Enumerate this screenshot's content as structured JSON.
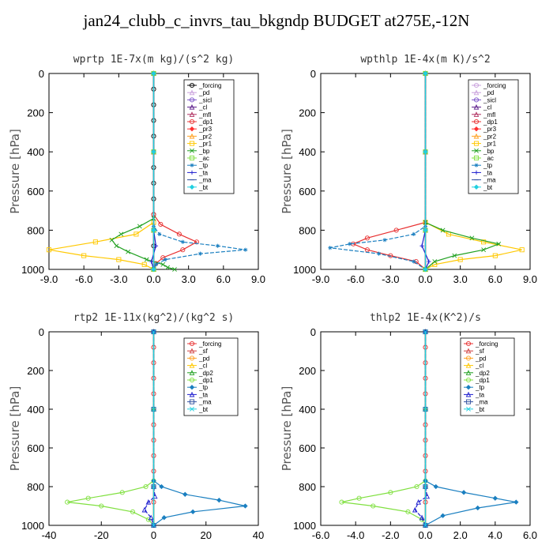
{
  "title": "jan24_clubb_c_invrs_tau_bkgndp  BUDGET at275E,-12N",
  "chart_data": [
    {
      "type": "line",
      "title": "wprtp  1E-7x(m kg)/(s^2 kg)",
      "ylabel": "Pressure [hPa]",
      "xlim": [
        -9.0,
        9.0
      ],
      "ylim": [
        1000,
        0
      ],
      "xticks": [
        "-9.0",
        "-6.0",
        "-3.0",
        "0.0",
        "3.0",
        "6.0",
        "9.0"
      ],
      "xtick_values": [
        -9,
        -6,
        -3,
        0,
        3,
        6,
        9
      ],
      "yticks": [
        "0",
        "200",
        "400",
        "600",
        "800",
        "1000"
      ],
      "ytick_values": [
        0,
        200,
        400,
        600,
        800,
        1000
      ],
      "series": [
        {
          "name": "_forcing",
          "color": "#000000",
          "x": [
            0,
            0,
            0,
            0,
            0,
            0,
            0,
            0,
            0,
            0,
            0,
            0,
            0
          ],
          "y": [
            0,
            80,
            160,
            240,
            320,
            400,
            480,
            560,
            640,
            720,
            800,
            880,
            1000
          ]
        },
        {
          "name": "_pd",
          "color": "#c9a0dc",
          "x": [
            0,
            0,
            0,
            0
          ],
          "y": [
            0,
            400,
            800,
            1000
          ]
        },
        {
          "name": "_sicl",
          "color": "#7b52c9",
          "x": [
            0,
            0,
            0,
            0
          ],
          "y": [
            0,
            400,
            800,
            1000
          ]
        },
        {
          "name": "_cl",
          "color": "#5a1a8a",
          "x": [
            0,
            0,
            0,
            0
          ],
          "y": [
            0,
            400,
            800,
            1000
          ]
        },
        {
          "name": "_mfl",
          "color": "#b03060",
          "x": [
            0,
            0,
            0,
            0
          ],
          "y": [
            0,
            400,
            800,
            1000
          ]
        },
        {
          "name": "_dp1",
          "color": "#e83030",
          "x": [
            0,
            0,
            0.6,
            2.2,
            3.7,
            2.5,
            0.8,
            0.2,
            0
          ],
          "y": [
            0,
            720,
            770,
            820,
            860,
            900,
            940,
            970,
            1000
          ]
        },
        {
          "name": "_pr3",
          "color": "#ff3030",
          "x": [
            0,
            0,
            0,
            0
          ],
          "y": [
            0,
            400,
            800,
            1000
          ]
        },
        {
          "name": "_pr2",
          "color": "#ffa020",
          "x": [
            0,
            0,
            0,
            0
          ],
          "y": [
            0,
            400,
            800,
            1000
          ]
        },
        {
          "name": "_pr1",
          "color": "#ffc800",
          "x": [
            0,
            0,
            -1.5,
            -5,
            -9,
            -6,
            -3,
            -0.8,
            0
          ],
          "y": [
            0,
            760,
            820,
            860,
            900,
            930,
            950,
            975,
            1000
          ]
        },
        {
          "name": "_bp",
          "color": "#20a020",
          "x": [
            0,
            0,
            -1.2,
            -2.8,
            -3.6,
            -3.2,
            -2.2,
            -0.6,
            0.8,
            1.2,
            1.8
          ],
          "y": [
            0,
            740,
            780,
            820,
            850,
            880,
            910,
            950,
            975,
            990,
            1000
          ]
        },
        {
          "name": "_ac",
          "color": "#80e040",
          "x": [
            0,
            0,
            0,
            0
          ],
          "y": [
            0,
            400,
            800,
            1000
          ]
        },
        {
          "name": "_tp",
          "color": "#1a7fc0",
          "x": [
            0,
            0,
            0.5,
            2.5,
            5.5,
            7.9,
            4,
            1,
            0.2,
            0
          ],
          "y": [
            0,
            780,
            820,
            860,
            880,
            900,
            920,
            950,
            975,
            1000
          ]
        },
        {
          "name": "_ta",
          "color": "#2020d0",
          "x": [
            0,
            0,
            0.2,
            -0.2,
            0
          ],
          "y": [
            0,
            800,
            880,
            960,
            1000
          ]
        },
        {
          "name": "_ma",
          "color": "#3050a0",
          "x": [
            0,
            0,
            0,
            0
          ],
          "y": [
            0,
            400,
            800,
            1000
          ]
        },
        {
          "name": "_bt",
          "color": "#20d0e0",
          "x": [
            0,
            0,
            0,
            0
          ],
          "y": [
            0,
            400,
            800,
            1000
          ]
        }
      ]
    },
    {
      "type": "line",
      "title": "wpthlp  1E-4x(m K)/s^2",
      "ylabel": "Pressure [hPa]",
      "xlim": [
        -9.0,
        9.0
      ],
      "ylim": [
        1000,
        0
      ],
      "xticks": [
        "-9.0",
        "-6.0",
        "-3.0",
        "0.0",
        "3.0",
        "6.0",
        "9.0"
      ],
      "xtick_values": [
        -9,
        -6,
        -3,
        0,
        3,
        6,
        9
      ],
      "yticks": [
        "0",
        "200",
        "400",
        "600",
        "800",
        "1000"
      ],
      "ytick_values": [
        0,
        200,
        400,
        600,
        800,
        1000
      ],
      "series": [
        {
          "name": "_forcing",
          "color": "#c9a0dc",
          "x": [
            0,
            0,
            0,
            0
          ],
          "y": [
            0,
            400,
            800,
            1000
          ]
        },
        {
          "name": "_pd",
          "color": "#c9a0dc",
          "x": [
            0,
            0,
            0,
            0
          ],
          "y": [
            0,
            400,
            800,
            1000
          ]
        },
        {
          "name": "_sicl",
          "color": "#7b52c9",
          "x": [
            0,
            0,
            0,
            0
          ],
          "y": [
            0,
            400,
            800,
            1000
          ]
        },
        {
          "name": "_cl",
          "color": "#5a1a8a",
          "x": [
            0,
            0,
            0,
            0
          ],
          "y": [
            0,
            400,
            800,
            1000
          ]
        },
        {
          "name": "_mfl",
          "color": "#b03060",
          "x": [
            0,
            0,
            0,
            0
          ],
          "y": [
            0,
            400,
            800,
            1000
          ]
        },
        {
          "name": "_dp1",
          "color": "#e83030",
          "x": [
            0,
            0,
            -2.5,
            -5,
            -6.2,
            -5,
            -3,
            -0.8,
            0
          ],
          "y": [
            0,
            760,
            800,
            840,
            870,
            900,
            930,
            960,
            1000
          ]
        },
        {
          "name": "_pr3",
          "color": "#ff3030",
          "x": [
            0,
            0,
            0,
            0
          ],
          "y": [
            0,
            400,
            800,
            1000
          ]
        },
        {
          "name": "_pr2",
          "color": "#ffa020",
          "x": [
            0,
            0,
            0,
            0
          ],
          "y": [
            0,
            400,
            800,
            1000
          ]
        },
        {
          "name": "_pr1",
          "color": "#ffc800",
          "x": [
            0,
            0,
            2,
            5,
            8.3,
            6,
            3,
            0.8,
            0
          ],
          "y": [
            0,
            760,
            820,
            860,
            900,
            930,
            950,
            975,
            1000
          ]
        },
        {
          "name": "_bp",
          "color": "#20a020",
          "x": [
            0,
            0,
            1.5,
            4,
            6.3,
            5,
            2.5,
            0.8,
            0
          ],
          "y": [
            0,
            760,
            800,
            840,
            870,
            900,
            930,
            960,
            1000
          ]
        },
        {
          "name": "_ac",
          "color": "#80e040",
          "x": [
            0,
            0,
            0,
            0
          ],
          "y": [
            0,
            400,
            800,
            1000
          ]
        },
        {
          "name": "_tp",
          "color": "#1a7fc0",
          "x": [
            0,
            0,
            -1,
            -3.5,
            -6.5,
            -8.2,
            -4,
            -1,
            0
          ],
          "y": [
            0,
            780,
            820,
            850,
            870,
            890,
            920,
            960,
            1000
          ]
        },
        {
          "name": "_ta",
          "color": "#2020d0",
          "x": [
            0,
            0,
            -0.3,
            0.3,
            0
          ],
          "y": [
            0,
            800,
            880,
            960,
            1000
          ]
        },
        {
          "name": "_ma",
          "color": "#3050a0",
          "x": [
            0,
            0,
            0,
            0
          ],
          "y": [
            0,
            400,
            800,
            1000
          ]
        },
        {
          "name": "_bt",
          "color": "#20d0e0",
          "x": [
            0,
            0,
            0,
            0
          ],
          "y": [
            0,
            400,
            800,
            1000
          ]
        }
      ]
    },
    {
      "type": "line",
      "title": "rtp2  1E-11x(kg^2)/(kg^2 s)",
      "ylabel": "Pressure [hPa]",
      "xlim": [
        -40,
        40
      ],
      "ylim": [
        1000,
        0
      ],
      "xticks": [
        "-40",
        "-20",
        "0",
        "20",
        "40"
      ],
      "xtick_values": [
        -40,
        -20,
        0,
        20,
        40
      ],
      "yticks": [
        "0",
        "200",
        "400",
        "600",
        "800",
        "1000"
      ],
      "ytick_values": [
        0,
        200,
        400,
        600,
        800,
        1000
      ],
      "series": [
        {
          "name": "_forcing",
          "color": "#e83030",
          "x": [
            0,
            0,
            0,
            0,
            0,
            0,
            0,
            0,
            0,
            0,
            0,
            0,
            0
          ],
          "y": [
            0,
            80,
            160,
            240,
            320,
            400,
            480,
            560,
            640,
            720,
            800,
            880,
            1000
          ]
        },
        {
          "name": "_sf",
          "color": "#d04040",
          "x": [
            0,
            0,
            0,
            0
          ],
          "y": [
            0,
            400,
            800,
            1000
          ]
        },
        {
          "name": "_pd",
          "color": "#ffa020",
          "x": [
            0,
            0,
            0,
            0
          ],
          "y": [
            0,
            400,
            800,
            1000
          ]
        },
        {
          "name": "_cl",
          "color": "#ffc800",
          "x": [
            0,
            0,
            0,
            0
          ],
          "y": [
            0,
            400,
            800,
            1000
          ]
        },
        {
          "name": "_dp2",
          "color": "#20a020",
          "x": [
            0,
            0,
            0,
            0
          ],
          "y": [
            0,
            400,
            800,
            1000
          ]
        },
        {
          "name": "_dp1",
          "color": "#80e040",
          "x": [
            0,
            0,
            -3,
            -12,
            -25,
            -33,
            -20,
            -8,
            -2,
            0
          ],
          "y": [
            0,
            770,
            800,
            830,
            860,
            880,
            900,
            930,
            970,
            1000
          ]
        },
        {
          "name": "_tp",
          "color": "#1a7fc0",
          "x": [
            0,
            0,
            3,
            12,
            25,
            35,
            15,
            4,
            0
          ],
          "y": [
            0,
            770,
            800,
            840,
            870,
            900,
            930,
            960,
            1000
          ]
        },
        {
          "name": "_ta",
          "color": "#2020d0",
          "x": [
            0,
            0,
            0.5,
            -2,
            -3.5,
            -1,
            0
          ],
          "y": [
            0,
            800,
            850,
            880,
            920,
            960,
            1000
          ]
        },
        {
          "name": "_ma",
          "color": "#3050a0",
          "x": [
            0,
            0,
            0,
            0
          ],
          "y": [
            0,
            400,
            800,
            1000
          ]
        },
        {
          "name": "_bt",
          "color": "#20d0e0",
          "x": [
            0,
            0,
            0,
            0
          ],
          "y": [
            0,
            400,
            800,
            1000
          ]
        }
      ]
    },
    {
      "type": "line",
      "title": "thlp2  1E-4x(K^2)/s",
      "ylabel": "Pressure [hPa]",
      "xlim": [
        -6.0,
        6.0
      ],
      "ylim": [
        1000,
        0
      ],
      "xticks": [
        "-6.0",
        "-4.0",
        "-2.0",
        "0.0",
        "2.0",
        "4.0",
        "6.0"
      ],
      "xtick_values": [
        -6,
        -4,
        -2,
        0,
        2,
        4,
        6
      ],
      "yticks": [
        "0",
        "200",
        "400",
        "600",
        "800",
        "1000"
      ],
      "ytick_values": [
        0,
        200,
        400,
        600,
        800,
        1000
      ],
      "series": [
        {
          "name": "_forcing",
          "color": "#e83030",
          "x": [
            0,
            0,
            0,
            0,
            0,
            0,
            0,
            0,
            0,
            0,
            0,
            0,
            0
          ],
          "y": [
            0,
            80,
            160,
            240,
            320,
            400,
            480,
            560,
            640,
            720,
            800,
            880,
            1000
          ]
        },
        {
          "name": "_sf",
          "color": "#d04040",
          "x": [
            0,
            0,
            0,
            0
          ],
          "y": [
            0,
            400,
            800,
            1000
          ]
        },
        {
          "name": "_pd",
          "color": "#ffa020",
          "x": [
            0,
            0,
            0,
            0
          ],
          "y": [
            0,
            400,
            800,
            1000
          ]
        },
        {
          "name": "_cl",
          "color": "#ffc800",
          "x": [
            0,
            0,
            0,
            0
          ],
          "y": [
            0,
            400,
            800,
            1000
          ]
        },
        {
          "name": "_dp2",
          "color": "#20a020",
          "x": [
            0,
            0,
            0,
            0
          ],
          "y": [
            0,
            400,
            800,
            1000
          ]
        },
        {
          "name": "_dp1",
          "color": "#80e040",
          "x": [
            0,
            0,
            -0.5,
            -2,
            -3.8,
            -4.8,
            -3,
            -1,
            -0.2,
            0
          ],
          "y": [
            0,
            770,
            800,
            830,
            860,
            880,
            900,
            930,
            970,
            1000
          ]
        },
        {
          "name": "_tp",
          "color": "#1a7fc0",
          "x": [
            0,
            0,
            0.6,
            2.2,
            4,
            5.2,
            3,
            1,
            0
          ],
          "y": [
            0,
            770,
            800,
            830,
            860,
            880,
            910,
            950,
            1000
          ]
        },
        {
          "name": "_ta",
          "color": "#2020d0",
          "x": [
            0,
            0,
            0.1,
            -0.4,
            -0.6,
            -0.2,
            0
          ],
          "y": [
            0,
            800,
            850,
            880,
            920,
            960,
            1000
          ]
        },
        {
          "name": "_ma",
          "color": "#3050a0",
          "x": [
            0,
            0,
            0,
            0
          ],
          "y": [
            0,
            400,
            800,
            1000
          ]
        },
        {
          "name": "_bt",
          "color": "#20d0e0",
          "x": [
            0,
            0,
            0,
            0
          ],
          "y": [
            0,
            400,
            800,
            1000
          ]
        }
      ]
    }
  ]
}
